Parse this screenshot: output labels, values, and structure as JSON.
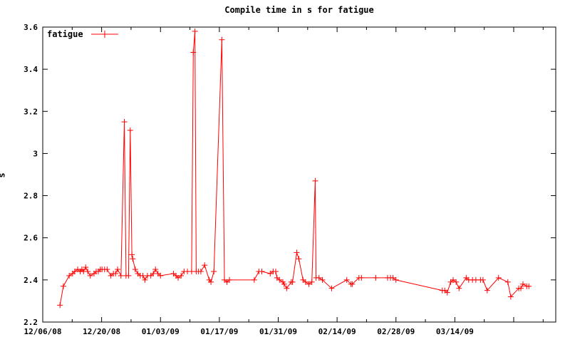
{
  "chart_data": {
    "type": "line",
    "title": "Compile time in s for fatigue",
    "xlabel": "",
    "ylabel": "s",
    "grid": false,
    "legend_position": "top-left-inside",
    "line_color": "#ff0000",
    "marker": "plus",
    "xlim_days": [
      0,
      122
    ],
    "ylim": [
      2.2,
      3.6
    ],
    "x_axis": {
      "epoch_label": "days since 12/06/08",
      "minor_tick_interval_days": 7,
      "labeled_ticks": [
        {
          "day": 0,
          "label": "12/06/08"
        },
        {
          "day": 14,
          "label": "12/20/08"
        },
        {
          "day": 28,
          "label": "01/03/09"
        },
        {
          "day": 42,
          "label": "01/17/09"
        },
        {
          "day": 56,
          "label": "01/31/09"
        },
        {
          "day": 70,
          "label": "02/14/09"
        },
        {
          "day": 84,
          "label": "02/28/09"
        },
        {
          "day": 98,
          "label": "03/14/09"
        }
      ],
      "last_unlabeled_tick_day": 119
    },
    "y_axis": {
      "ticks": [
        2.2,
        2.4,
        2.6,
        2.8,
        3,
        3.2,
        3.4,
        3.6
      ],
      "tick_labels": [
        "2.2",
        "2.4",
        "2.6",
        "2.8",
        "3",
        "3.2",
        "3.4",
        "3.6"
      ]
    },
    "series": [
      {
        "name": "fatigue",
        "color": "#ff0000",
        "points": [
          [
            4.1,
            2.28
          ],
          [
            4.9,
            2.37
          ],
          [
            6.3,
            2.42
          ],
          [
            7.1,
            2.43
          ],
          [
            7.6,
            2.44
          ],
          [
            8.3,
            2.45
          ],
          [
            8.9,
            2.44
          ],
          [
            9.3,
            2.45
          ],
          [
            9.7,
            2.44
          ],
          [
            10.2,
            2.46
          ],
          [
            10.7,
            2.44
          ],
          [
            11.3,
            2.42
          ],
          [
            12.2,
            2.43
          ],
          [
            12.7,
            2.44
          ],
          [
            13.2,
            2.44
          ],
          [
            13.7,
            2.45
          ],
          [
            14.1,
            2.45
          ],
          [
            14.7,
            2.45
          ],
          [
            15.3,
            2.45
          ],
          [
            16.2,
            2.42
          ],
          [
            16.8,
            2.43
          ],
          [
            17.3,
            2.43
          ],
          [
            17.8,
            2.45
          ],
          [
            18.6,
            2.42
          ],
          [
            19.4,
            3.15
          ],
          [
            19.8,
            2.42
          ],
          [
            20.4,
            2.42
          ],
          [
            20.8,
            3.11
          ],
          [
            21.2,
            2.52
          ],
          [
            21.4,
            2.5
          ],
          [
            22.0,
            2.45
          ],
          [
            22.6,
            2.43
          ],
          [
            23.2,
            2.42
          ],
          [
            23.8,
            2.42
          ],
          [
            24.3,
            2.4
          ],
          [
            24.9,
            2.42
          ],
          [
            25.7,
            2.42
          ],
          [
            26.3,
            2.43
          ],
          [
            26.8,
            2.45
          ],
          [
            27.4,
            2.43
          ],
          [
            28.0,
            2.42
          ],
          [
            31.1,
            2.43
          ],
          [
            31.7,
            2.42
          ],
          [
            32.2,
            2.41
          ],
          [
            32.9,
            2.42
          ],
          [
            33.6,
            2.44
          ],
          [
            34.4,
            2.44
          ],
          [
            35.4,
            2.44
          ],
          [
            35.8,
            3.48
          ],
          [
            36.2,
            3.58
          ],
          [
            36.5,
            2.44
          ],
          [
            37.0,
            2.44
          ],
          [
            37.6,
            2.44
          ],
          [
            38.5,
            2.47
          ],
          [
            39.6,
            2.4
          ],
          [
            40.0,
            2.39
          ],
          [
            40.7,
            2.44
          ],
          [
            42.6,
            3.54
          ],
          [
            43.2,
            2.4
          ],
          [
            43.8,
            2.39
          ],
          [
            44.4,
            2.4
          ],
          [
            50.3,
            2.4
          ],
          [
            51.4,
            2.44
          ],
          [
            52.1,
            2.44
          ],
          [
            54.1,
            2.43
          ],
          [
            54.8,
            2.44
          ],
          [
            55.4,
            2.44
          ],
          [
            55.7,
            2.41
          ],
          [
            56.3,
            2.4
          ],
          [
            57.1,
            2.39
          ],
          [
            57.4,
            2.38
          ],
          [
            58.0,
            2.36
          ],
          [
            59.1,
            2.39
          ],
          [
            59.4,
            2.39
          ],
          [
            60.4,
            2.53
          ],
          [
            60.9,
            2.5
          ],
          [
            61.9,
            2.4
          ],
          [
            62.5,
            2.39
          ],
          [
            63.3,
            2.38
          ],
          [
            64.0,
            2.39
          ],
          [
            64.8,
            2.87
          ],
          [
            65.0,
            2.41
          ],
          [
            65.7,
            2.41
          ],
          [
            66.5,
            2.4
          ],
          [
            68.7,
            2.36
          ],
          [
            72.3,
            2.4
          ],
          [
            73.3,
            2.38
          ],
          [
            73.6,
            2.38
          ],
          [
            75.2,
            2.41
          ],
          [
            75.8,
            2.41
          ],
          [
            79.2,
            2.41
          ],
          [
            82.0,
            2.41
          ],
          [
            82.7,
            2.41
          ],
          [
            83.3,
            2.41
          ],
          [
            84.0,
            2.4
          ],
          [
            95.0,
            2.35
          ],
          [
            95.6,
            2.35
          ],
          [
            96.2,
            2.34
          ],
          [
            97.0,
            2.39
          ],
          [
            97.6,
            2.4
          ],
          [
            98.3,
            2.39
          ],
          [
            99.0,
            2.36
          ],
          [
            100.7,
            2.41
          ],
          [
            101.3,
            2.4
          ],
          [
            102.2,
            2.4
          ],
          [
            103.0,
            2.4
          ],
          [
            104.1,
            2.4
          ],
          [
            104.7,
            2.4
          ],
          [
            105.7,
            2.35
          ],
          [
            108.4,
            2.41
          ],
          [
            110.6,
            2.39
          ],
          [
            111.3,
            2.32
          ],
          [
            113.2,
            2.36
          ],
          [
            113.7,
            2.36
          ],
          [
            114.2,
            2.38
          ],
          [
            115.1,
            2.37
          ],
          [
            115.6,
            2.37
          ]
        ]
      }
    ]
  }
}
